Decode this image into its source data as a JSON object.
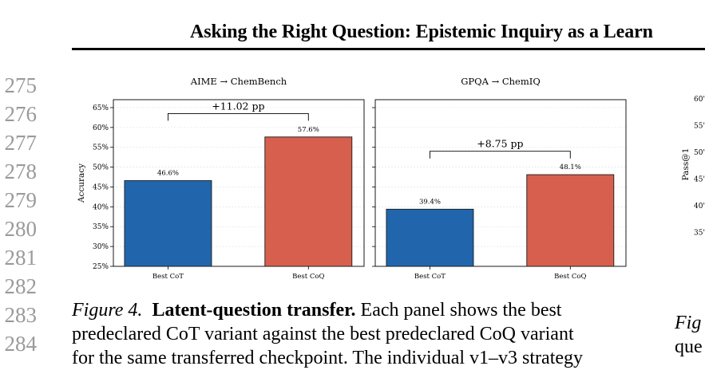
{
  "header": {
    "title": "Asking the Right Question: Epistemic Inquiry as a Learn"
  },
  "line_numbers": [
    "275",
    "276",
    "277",
    "278",
    "279",
    "280",
    "281",
    "282",
    "283",
    "284"
  ],
  "colors": {
    "cot": "#2166ac",
    "coq": "#d6604d",
    "line_number": "#9a9a9a"
  },
  "chart_data": [
    {
      "type": "bar",
      "title": "AIME → ChemBench",
      "ylabel": "Accuracy",
      "ylim": [
        25,
        67
      ],
      "yticks": [
        "25%",
        "30%",
        "35%",
        "40%",
        "45%",
        "50%",
        "55%",
        "60%",
        "65%"
      ],
      "categories": [
        "Best CoT",
        "Best CoQ"
      ],
      "values": [
        46.6,
        57.6
      ],
      "value_labels": [
        "46.6%",
        "57.6%"
      ],
      "bracket_label": "+11.02 pp",
      "bracket_y": 63.5
    },
    {
      "type": "bar",
      "title": "GPQA → ChemIQ",
      "ylabel": "",
      "ylim": [
        25,
        67
      ],
      "yticks": [],
      "categories": [
        "Best CoT",
        "Best CoQ"
      ],
      "values": [
        39.4,
        48.1
      ],
      "value_labels": [
        "39.4%",
        "48.1%"
      ],
      "bracket_label": "+8.75 pp",
      "bracket_y": 54.0
    },
    {
      "type": "bar",
      "title": "",
      "ylabel": "Pass@1",
      "yticks": [
        "60'",
        "55'",
        "50'",
        "45'",
        "40'",
        "35'"
      ],
      "categories": [],
      "values": []
    }
  ],
  "caption": {
    "label": "Figure 4.",
    "title": "Latent-question transfer.",
    "text_line1": " Each panel shows the best",
    "text_line2": "predeclared CoT variant against the best predeclared CoQ variant",
    "text_line3": "for the same transferred checkpoint. The individual v1–v3 strategy"
  },
  "right_caption": {
    "line1": "Fig",
    "line2": "que"
  }
}
